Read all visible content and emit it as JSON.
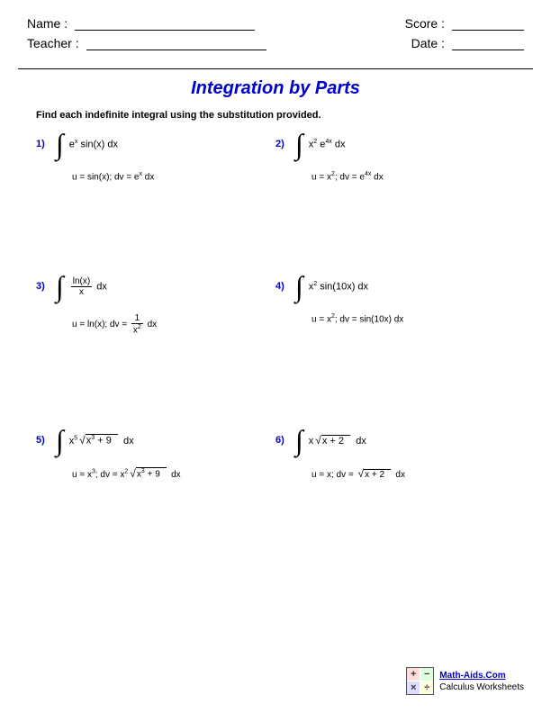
{
  "header": {
    "name_label": "Name :",
    "teacher_label": "Teacher :",
    "score_label": "Score :",
    "date_label": "Date :"
  },
  "title": "Integration by Parts",
  "instructions": "Find each indefinite integral using the substitution provided.",
  "problems": {
    "p1": {
      "num": "1)",
      "sub": "u = sin(x); dv = e"
    },
    "p2": {
      "num": "2)",
      "sub_a": "u = x",
      "sub_b": "; dv = e"
    },
    "p3": {
      "num": "3)",
      "sub_a": "u = ln(x); dv = "
    },
    "p4": {
      "num": "4)",
      "sub_a": "u = x",
      "sub_b": "; dv = sin(10x) dx"
    },
    "p5": {
      "num": "5)",
      "sub_a": "u = x",
      "sub_b": "; dv = x"
    },
    "p6": {
      "num": "6)",
      "sub_a": "u = x; dv = "
    }
  },
  "footer": {
    "brand": "Math-Aids.Com",
    "sub": "Calculus Worksheets"
  }
}
